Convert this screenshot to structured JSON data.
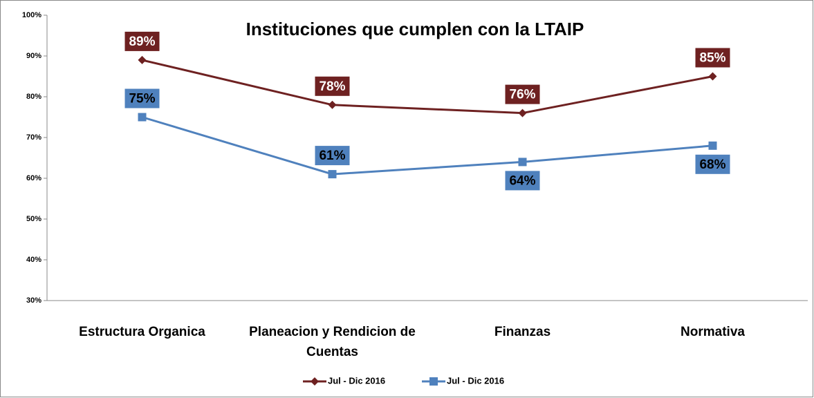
{
  "chart_data": {
    "type": "line",
    "title": "Instituciones que cumplen con la LTAIP",
    "categories": [
      "Estructura Organica",
      "Planeacion y Rendicion de Cuentas",
      "Finanzas",
      "Normativa"
    ],
    "series": [
      {
        "name": "Jul - Dic 2016",
        "color": "#6e2121",
        "marker": "diamond",
        "values": [
          89,
          78,
          76,
          85
        ],
        "value_labels": [
          "89%",
          "78%",
          "76%",
          "85%"
        ]
      },
      {
        "name": "Jul - Dic 2016",
        "color": "#4f81bd",
        "marker": "square",
        "values": [
          75,
          61,
          64,
          68
        ],
        "value_labels": [
          "75%",
          "61%",
          "64%",
          "68%"
        ]
      }
    ],
    "ylim": [
      30,
      100
    ],
    "yticks": [
      {
        "value": 30,
        "label": "30%"
      },
      {
        "value": 40,
        "label": "40%"
      },
      {
        "value": 50,
        "label": "50%"
      },
      {
        "value": 60,
        "label": "60%"
      },
      {
        "value": 70,
        "label": "70%"
      },
      {
        "value": 80,
        "label": "80%"
      },
      {
        "value": 90,
        "label": "90%"
      },
      {
        "value": 100,
        "label": "100%"
      }
    ],
    "grid": false,
    "legend": "bottom"
  }
}
